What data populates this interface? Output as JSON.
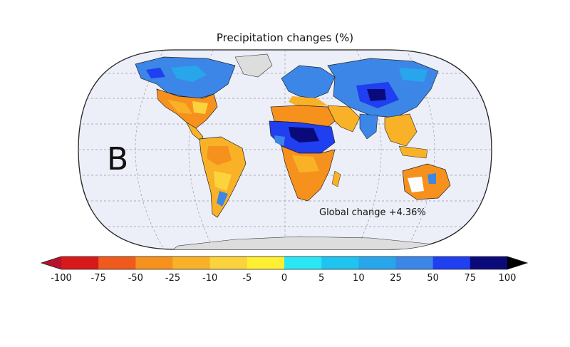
{
  "map": {
    "title": "Precipitation changes (%)",
    "panel_label": "B",
    "global_change_text": "Global change +4.36%",
    "projection": "robinson",
    "ocean_color": "#eceef8",
    "land_no_data_color": "#dddddd"
  },
  "colorbar": {
    "ticks": [
      "-100",
      "-75",
      "-50",
      "-25",
      "-10",
      "-5",
      "0",
      "5",
      "10",
      "25",
      "50",
      "75",
      "100"
    ],
    "colors": [
      "#d7191c",
      "#f05a1c",
      "#f7911e",
      "#f9b227",
      "#fbd33d",
      "#fef030",
      "#2be6f5",
      "#1fc4f0",
      "#28a6ec",
      "#3c86e8",
      "#1f3ff0",
      "#0a0a7a"
    ],
    "extend": "both"
  }
}
